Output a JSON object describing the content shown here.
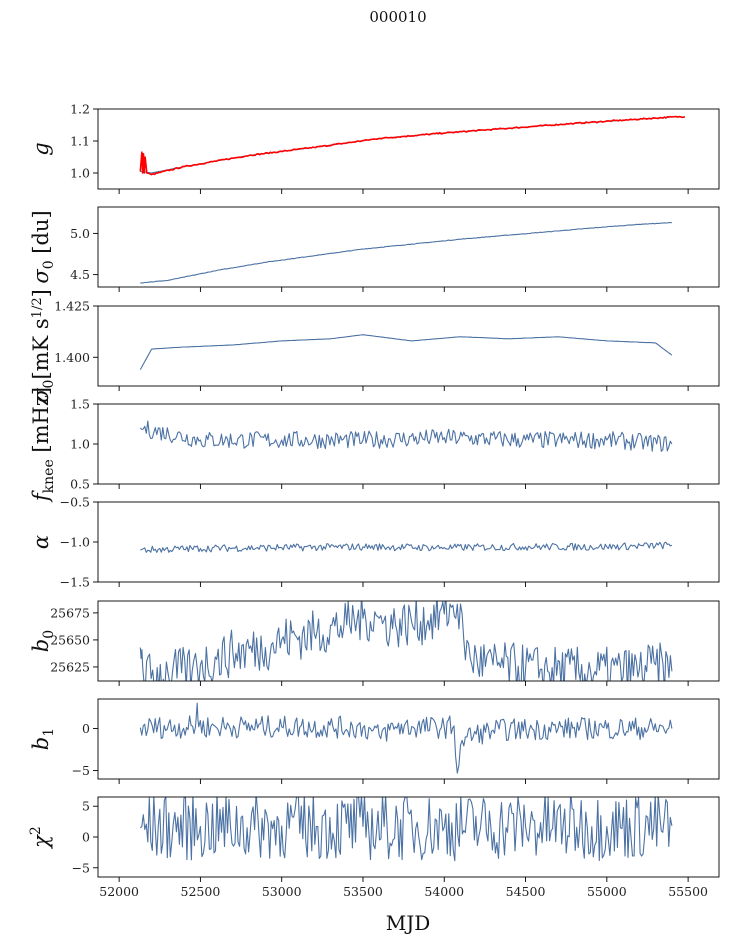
{
  "title": "000010",
  "xlabel": "MJD",
  "colors": {
    "series": "#4c72a4",
    "red": "#ff0000"
  },
  "chart_data": [
    {
      "type": "line",
      "name": "gain",
      "ylabel": "g",
      "ylim": [
        0.95,
        1.2
      ],
      "yticks": [
        1.0,
        1.1,
        1.2
      ],
      "ytick_labels": [
        "1.0",
        "1.1",
        "1.2"
      ],
      "xlim": [
        51870,
        55690
      ],
      "series": [
        {
          "kind": "blue",
          "points": [
            [
              52130,
              1.005
            ],
            [
              52200,
              1.0
            ],
            [
              52400,
              1.02
            ],
            [
              52800,
              1.055
            ],
            [
              53200,
              1.08
            ],
            [
              53600,
              1.108
            ],
            [
              54000,
              1.125
            ],
            [
              54400,
              1.14
            ],
            [
              54800,
              1.155
            ],
            [
              55100,
              1.165
            ],
            [
              55400,
              1.175
            ],
            [
              55480,
              1.175
            ]
          ]
        },
        {
          "kind": "red",
          "points": [
            [
              52130,
              1.005
            ],
            [
              52140,
              1.065
            ],
            [
              52145,
              1.0
            ],
            [
              52150,
              1.06
            ],
            [
              52155,
              1.0
            ],
            [
              52160,
              1.05
            ],
            [
              52170,
              1.0
            ],
            [
              52200,
              0.995
            ],
            [
              52400,
              1.02
            ],
            [
              52800,
              1.055
            ],
            [
              53200,
              1.08
            ],
            [
              53600,
              1.108
            ],
            [
              54000,
              1.125
            ],
            [
              54400,
              1.14
            ],
            [
              54800,
              1.155
            ],
            [
              55100,
              1.165
            ],
            [
              55400,
              1.175
            ],
            [
              55480,
              1.176
            ]
          ]
        }
      ]
    },
    {
      "type": "line",
      "name": "sigma0-du",
      "ylabel": "σ0 [du]",
      "ylim": [
        4.35,
        5.32
      ],
      "yticks": [
        4.5,
        5.0
      ],
      "ytick_labels": [
        "4.5",
        "5.0"
      ],
      "xlim": [
        51870,
        55690
      ],
      "series": [
        {
          "kind": "blue",
          "points": [
            [
              52130,
              4.4
            ],
            [
              52300,
              4.43
            ],
            [
              52600,
              4.55
            ],
            [
              52900,
              4.65
            ],
            [
              53200,
              4.73
            ],
            [
              53500,
              4.81
            ],
            [
              53800,
              4.87
            ],
            [
              54100,
              4.93
            ],
            [
              54400,
              4.98
            ],
            [
              54700,
              5.03
            ],
            [
              55000,
              5.08
            ],
            [
              55200,
              5.11
            ],
            [
              55400,
              5.13
            ]
          ]
        }
      ]
    },
    {
      "type": "line",
      "name": "sigma0-mK",
      "ylabel": "σ0[mK s1/2]",
      "ylim": [
        1.386,
        1.425
      ],
      "yticks": [
        1.4,
        1.425
      ],
      "ytick_labels": [
        "1.400",
        "1.425"
      ],
      "xlim": [
        51870,
        55690
      ],
      "series": [
        {
          "kind": "blue",
          "points": [
            [
              52130,
              1.394
            ],
            [
              52200,
              1.404
            ],
            [
              52400,
              1.405
            ],
            [
              52700,
              1.406
            ],
            [
              53000,
              1.408
            ],
            [
              53300,
              1.409
            ],
            [
              53500,
              1.411
            ],
            [
              53800,
              1.408
            ],
            [
              54100,
              1.41
            ],
            [
              54400,
              1.409
            ],
            [
              54700,
              1.41
            ],
            [
              55000,
              1.408
            ],
            [
              55300,
              1.407
            ],
            [
              55400,
              1.401
            ]
          ]
        }
      ]
    },
    {
      "type": "line",
      "name": "fknee",
      "ylabel": "fknee [mHz]",
      "ylim": [
        0.5,
        1.5
      ],
      "yticks": [
        0.5,
        1.0,
        1.5
      ],
      "ytick_labels": [
        "0.5",
        "1.0",
        "1.5"
      ],
      "xlim": [
        51870,
        55690
      ],
      "series": [
        {
          "kind": "blue",
          "points": [
            [
              52130,
              1.2
            ],
            [
              52500,
              1.05
            ],
            [
              53000,
              1.05
            ],
            [
              53500,
              1.05
            ],
            [
              54000,
              1.08
            ],
            [
              54500,
              1.05
            ],
            [
              55000,
              1.05
            ],
            [
              55400,
              1.0
            ]
          ]
        }
      ]
    },
    {
      "type": "line",
      "name": "alpha",
      "ylabel": "α",
      "ylim": [
        -1.5,
        -0.5
      ],
      "yticks": [
        -1.5,
        -1.0,
        -0.5
      ],
      "ytick_labels": [
        "−1.5",
        "−1.0",
        "−0.5"
      ],
      "xlim": [
        51870,
        55690
      ],
      "series": [
        {
          "kind": "blue",
          "points": [
            [
              52130,
              -1.1
            ],
            [
              52500,
              -1.08
            ],
            [
              53000,
              -1.07
            ],
            [
              53500,
              -1.06
            ],
            [
              54000,
              -1.07
            ],
            [
              54500,
              -1.06
            ],
            [
              55000,
              -1.06
            ],
            [
              55400,
              -1.04
            ]
          ]
        }
      ]
    },
    {
      "type": "line",
      "name": "b0",
      "ylabel": "b0",
      "ylim": [
        25612,
        25686
      ],
      "yticks": [
        25625,
        25650,
        25675
      ],
      "ytick_labels": [
        "25625",
        "25650",
        "25675"
      ],
      "xlim": [
        51870,
        55690
      ],
      "series": [
        {
          "kind": "blue",
          "points": [
            [
              52130,
              25643
            ],
            [
              52140,
              25641
            ],
            [
              52150,
              25616
            ],
            [
              52300,
              25620
            ],
            [
              52450,
              25622
            ],
            [
              52500,
              25627
            ],
            [
              52600,
              25632
            ],
            [
              52700,
              25638
            ],
            [
              52900,
              25643
            ],
            [
              53000,
              25650
            ],
            [
              53200,
              25656
            ],
            [
              53400,
              25664
            ],
            [
              53500,
              25670
            ],
            [
              53600,
              25670
            ],
            [
              53620,
              25665
            ],
            [
              53700,
              25664
            ],
            [
              53900,
              25668
            ],
            [
              54000,
              25674
            ],
            [
              54080,
              25683
            ],
            [
              54120,
              25650
            ],
            [
              54160,
              25633
            ],
            [
              54300,
              25627
            ],
            [
              54600,
              25623
            ],
            [
              54900,
              25621
            ],
            [
              55200,
              25622
            ],
            [
              55300,
              25627
            ],
            [
              55400,
              25621
            ]
          ]
        }
      ]
    },
    {
      "type": "line",
      "name": "b1",
      "ylabel": "b1",
      "ylim": [
        -6,
        3.5
      ],
      "yticks": [
        -5,
        0
      ],
      "ytick_labels": [
        "−5",
        "0"
      ],
      "xlim": [
        51870,
        55690
      ],
      "series": [
        {
          "kind": "blue",
          "points": [
            [
              52130,
              0.1
            ],
            [
              52470,
              0.2
            ],
            [
              52480,
              3.0
            ],
            [
              52490,
              0.2
            ],
            [
              53000,
              0.2
            ],
            [
              53500,
              0.1
            ],
            [
              53600,
              -0.8
            ],
            [
              53700,
              0.2
            ],
            [
              54000,
              0.1
            ],
            [
              54060,
              0.3
            ],
            [
              54080,
              -5.3
            ],
            [
              54100,
              -2.0
            ],
            [
              54140,
              -1.0
            ],
            [
              54300,
              -0.2
            ],
            [
              54700,
              0.0
            ],
            [
              55000,
              0.0
            ],
            [
              55400,
              0.0
            ]
          ]
        }
      ]
    },
    {
      "type": "line",
      "name": "chi2",
      "ylabel": "χ2",
      "ylim": [
        -6.5,
        6.5
      ],
      "yticks": [
        -5,
        0,
        5
      ],
      "ytick_labels": [
        "−5",
        "0",
        "5"
      ],
      "xlim": [
        51870,
        55690
      ],
      "xticks": [
        52000,
        52500,
        53000,
        53500,
        54000,
        54500,
        55000,
        55500
      ],
      "xtick_labels": [
        "52000",
        "52500",
        "53000",
        "53500",
        "54000",
        "54500",
        "55000",
        "55500"
      ],
      "series": [
        {
          "kind": "blue",
          "points": [
            [
              52130,
              1.5
            ],
            [
              52500,
              1.7
            ],
            [
              53000,
              1.8
            ],
            [
              53500,
              1.7
            ],
            [
              54000,
              1.6
            ],
            [
              54500,
              1.8
            ],
            [
              55000,
              1.7
            ],
            [
              55400,
              1.8
            ]
          ]
        }
      ]
    }
  ]
}
